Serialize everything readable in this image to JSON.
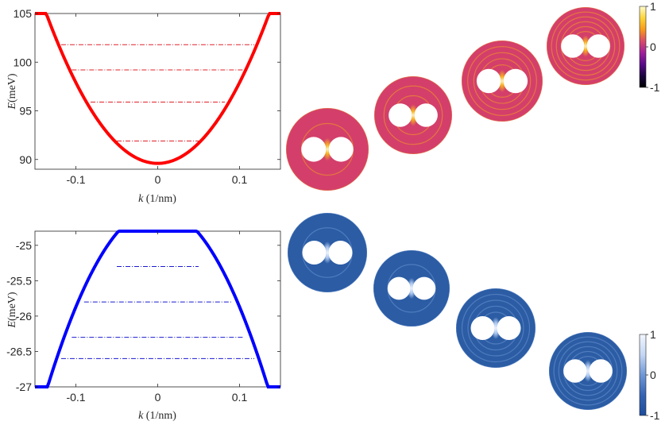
{
  "chart_data": [
    {
      "type": "line",
      "xlabel_var": "k",
      "xlabel_unit": " (1/nm)",
      "ylabel_var": "E",
      "ylabel_unit": "(meV)",
      "xlim": [
        -0.15,
        0.15
      ],
      "ylim": [
        89,
        105
      ],
      "xticks": [
        -0.1,
        0,
        0.1
      ],
      "yticks": [
        90,
        95,
        100,
        105
      ],
      "xtick_labels": [
        "-0.1",
        "0",
        "0.1"
      ],
      "ytick_labels": [
        "90",
        "95",
        "100",
        "105"
      ],
      "curve": {
        "vertex_x": 0,
        "vertex_y": 89.6,
        "curvature": 830,
        "x_range": [
          -0.15,
          0.15
        ],
        "color": "#ff0000"
      },
      "levels": [
        {
          "energy": 101.8,
          "x_range": [
            -0.118,
            0.118
          ]
        },
        {
          "energy": 99.2,
          "x_range": [
            -0.105,
            0.105
          ]
        },
        {
          "energy": 95.9,
          "x_range": [
            -0.082,
            0.082
          ]
        },
        {
          "energy": 91.9,
          "x_range": [
            -0.05,
            0.05
          ]
        }
      ],
      "level_color": "#e0202a"
    },
    {
      "type": "line",
      "xlabel_var": "k",
      "xlabel_unit": " (1/nm)",
      "ylabel_var": "E",
      "ylabel_unit": "(meV)",
      "xlim": [
        -0.15,
        0.15
      ],
      "ylim": [
        -27,
        -24.8
      ],
      "xticks": [
        -0.1,
        0,
        0.1
      ],
      "yticks": [
        -25,
        -25.5,
        -26,
        -26.5,
        -27
      ],
      "xtick_labels": [
        "-0.1",
        "0",
        "0.1"
      ],
      "ytick_labels": [
        "-25",
        "-25.5",
        "-26",
        "-26.5",
        "-27"
      ],
      "curve": {
        "vertex_x": 0,
        "vertex_y": -24.48,
        "curvature": -139,
        "x_range": [
          -0.15,
          0.15
        ],
        "color": "#0000ff"
      },
      "levels": [
        {
          "energy": -25.3,
          "x_range": [
            -0.05,
            0.05
          ]
        },
        {
          "energy": -25.8,
          "x_range": [
            -0.09,
            0.09
          ]
        },
        {
          "energy": -26.3,
          "x_range": [
            -0.105,
            0.105
          ]
        },
        {
          "energy": -26.6,
          "x_range": [
            -0.118,
            0.118
          ]
        }
      ],
      "level_color": "#1a1ad0"
    }
  ],
  "colorbars": [
    {
      "name": "top",
      "tick_labels": [
        "1",
        "0",
        "-1"
      ],
      "stops": [
        "#fffbd0",
        "#fcd53a",
        "#f89a1c",
        "#d94a6a",
        "#a0209a",
        "#5a0a8a",
        "#1a0540",
        "#000000"
      ]
    },
    {
      "name": "bottom",
      "tick_labels": [
        "1",
        "0",
        "-1"
      ],
      "stops": [
        "#f2f7ff",
        "#c4d6f4",
        "#6f97d6",
        "#3563b4",
        "#1d4c9c"
      ]
    }
  ],
  "mode_maps": {
    "top_color": "#d33f6a",
    "bottom_color": "#2b5ca4",
    "top_count": 4,
    "bottom_count": 4
  }
}
